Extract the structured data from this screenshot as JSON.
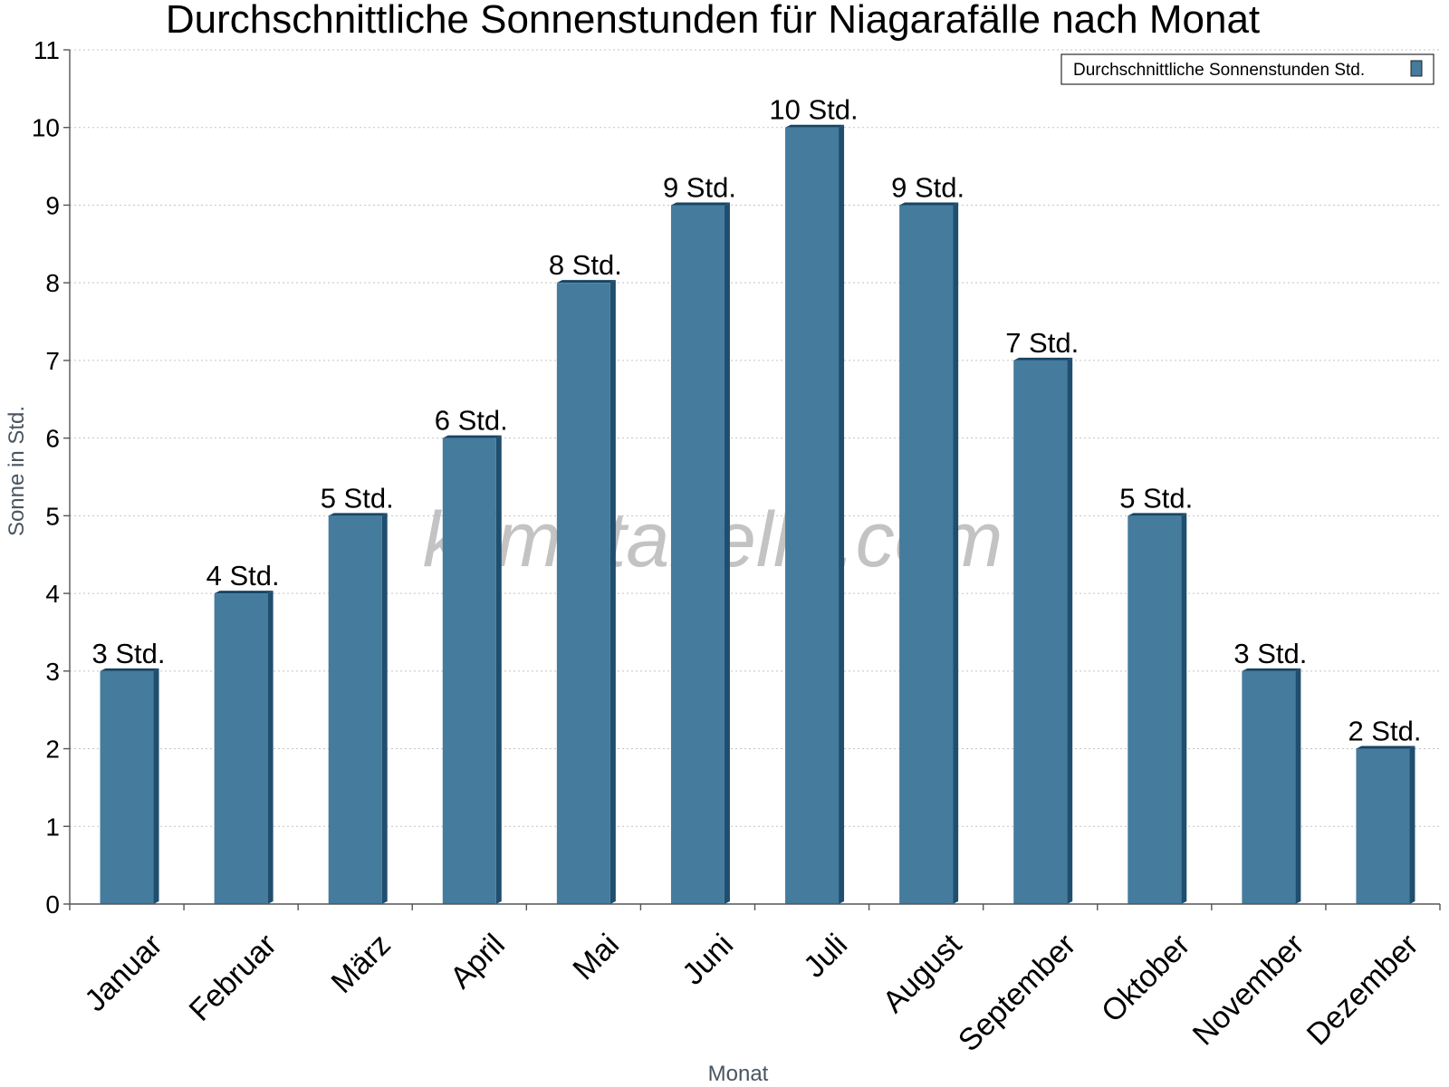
{
  "chart_data": {
    "type": "bar",
    "title": "Durchschnittliche Sonnenstunden für Niagarafälle nach Monat",
    "xlabel": "Monat",
    "ylabel": "Sonne in Std.",
    "ylim": [
      0,
      11
    ],
    "yticks": [
      "0",
      "1",
      "2",
      "3",
      "4",
      "5",
      "6",
      "7",
      "8",
      "9",
      "10",
      "11"
    ],
    "categories": [
      "Januar",
      "Februar",
      "März",
      "April",
      "Mai",
      "Juni",
      "Juli",
      "August",
      "September",
      "Oktober",
      "November",
      "Dezember"
    ],
    "series": [
      {
        "name": "Durchschnittliche Sonnenstunden Std.",
        "values": [
          3,
          4,
          5,
          6,
          8,
          9,
          10,
          9,
          7,
          5,
          3,
          2
        ],
        "labels": [
          "3 Std.",
          "4 Std.",
          "5 Std.",
          "6 Std.",
          "8 Std.",
          "9 Std.",
          "10 Std.",
          "9 Std.",
          "7 Std.",
          "5 Std.",
          "3 Std.",
          "2 Std."
        ]
      }
    ],
    "grid": true,
    "legend": "top-right",
    "colors": {
      "bar": "#457b9d",
      "bar_side": "#1f4e6e",
      "bar_top": "#164566"
    }
  },
  "watermark": "klimatabelle.com"
}
